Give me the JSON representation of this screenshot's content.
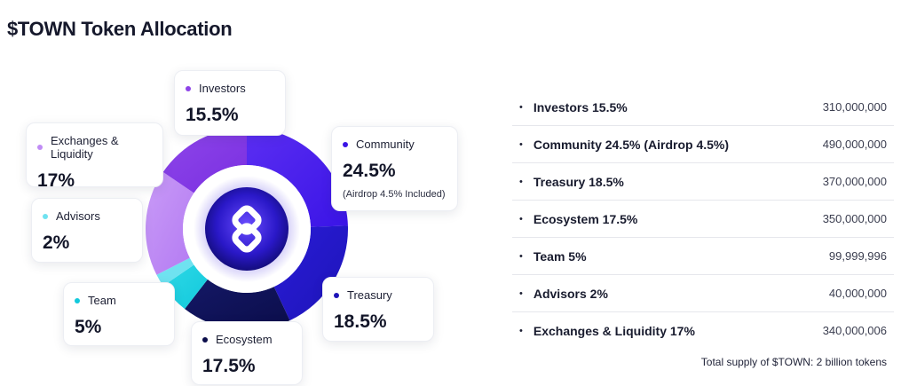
{
  "title": "$TOWN Token Allocation",
  "chart_data": {
    "type": "pie",
    "title": "$TOWN Token Allocation",
    "slices": [
      {
        "name": "Community",
        "value": 24.5,
        "label": "24.5%",
        "note": "(Airdrop 4.5% Included)",
        "color": "#3a14e6",
        "color_end": "#5b2ef2"
      },
      {
        "name": "Treasury",
        "value": 18.5,
        "label": "18.5%",
        "color": "#1d14b8",
        "color_end": "#2a1cd6"
      },
      {
        "name": "Ecosystem",
        "value": 17.5,
        "label": "17.5%",
        "color": "#0b0d4a",
        "color_end": "#141866"
      },
      {
        "name": "Team",
        "value": 5,
        "label": "5%",
        "color": "#12c9dc",
        "color_end": "#2ed8e6"
      },
      {
        "name": "Advisors",
        "value": 2,
        "label": "2%",
        "color": "#6fe2f0",
        "color_end": "#6fe2f0"
      },
      {
        "name": "Exchanges & Liquidity",
        "value": 17,
        "label": "17%",
        "color": "#b37af2",
        "color_end": "#c99bf7"
      },
      {
        "name": "Investors",
        "value": 15.5,
        "label": "15.5%",
        "color": "#7a2fe0",
        "color_end": "#8e46ea"
      }
    ],
    "center_logo": "town-logo-icon"
  },
  "cards": {
    "investors": {
      "label": "Investors",
      "value": "15.5%",
      "dot": "#8e44e8"
    },
    "community": {
      "label": "Community",
      "value": "24.5%",
      "note": "(Airdrop 4.5% Included)",
      "dot": "#3a14e6"
    },
    "exchanges": {
      "label": "Exchanges & Liquidity",
      "value": "17%",
      "dot": "#c08cf5"
    },
    "advisors": {
      "label": "Advisors",
      "value": "2%",
      "dot": "#6fe2f0"
    },
    "team": {
      "label": "Team",
      "value": "5%",
      "dot": "#12c9dc"
    },
    "treasury": {
      "label": "Treasury",
      "value": "18.5%",
      "dot": "#1d14b8"
    },
    "ecosystem": {
      "label": "Ecosystem",
      "value": "17.5%",
      "dot": "#0b0d4a"
    }
  },
  "table": {
    "rows": [
      {
        "label": "Investors 15.5%",
        "amount": "310,000,000"
      },
      {
        "label": "Community 24.5% (Airdrop 4.5%)",
        "amount": "490,000,000"
      },
      {
        "label": "Treasury 18.5%",
        "amount": "370,000,000"
      },
      {
        "label": "Ecosystem 17.5%",
        "amount": "350,000,000"
      },
      {
        "label": "Team 5%",
        "amount": "99,999,996"
      },
      {
        "label": "Advisors 2%",
        "amount": "40,000,000"
      },
      {
        "label": "Exchanges & Liquidity 17%",
        "amount": "340,000,006"
      }
    ],
    "bullet": "•",
    "total": "Total supply of $TOWN: 2 billion tokens"
  }
}
